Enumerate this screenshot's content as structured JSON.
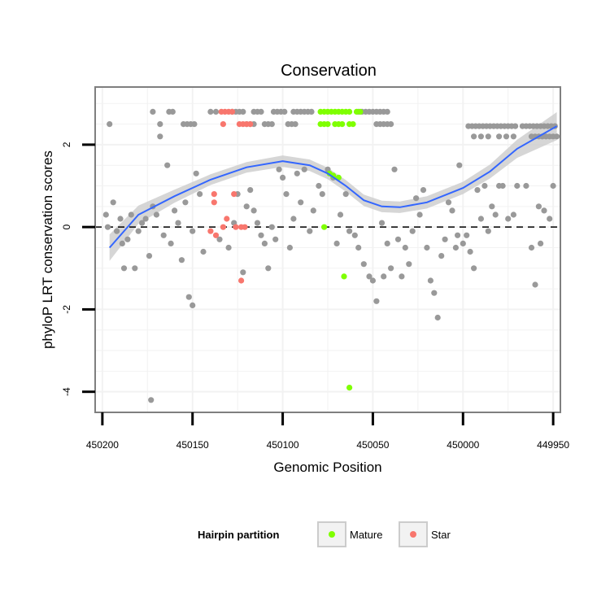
{
  "chart_data": {
    "type": "scatter",
    "title": "Conservation",
    "xlabel": "Genomic Position",
    "ylabel": "phyloP LRT conservation scores",
    "xlim": [
      450204,
      449946
    ],
    "ylim": [
      -4.5,
      3.4
    ],
    "x_reversed": true,
    "x_ticks": [
      450200,
      450150,
      450100,
      450050,
      450000,
      449950
    ],
    "y_ticks": [
      -4,
      -2,
      0,
      2
    ],
    "reference_line": {
      "y": 0,
      "style": "dashed"
    },
    "legend": {
      "title": "Hairpin partition",
      "position": "bottom",
      "entries": [
        {
          "label": "Mature",
          "color": "#7fff00"
        },
        {
          "label": "Star",
          "color": "#f8766d"
        }
      ]
    },
    "colors": {
      "other": "#999999",
      "mature": "#7fff00",
      "star": "#f8766d",
      "smooth": "#3366ff",
      "band": "#cccccc"
    },
    "smooth_fit": {
      "method": "loess",
      "x": [
        450196,
        450180,
        450160,
        450140,
        450120,
        450100,
        450085,
        450075,
        450065,
        450055,
        450045,
        450035,
        450020,
        450000,
        449985,
        449970,
        449948
      ],
      "y": [
        -0.5,
        0.3,
        0.75,
        1.15,
        1.45,
        1.6,
        1.5,
        1.3,
        1.0,
        0.65,
        0.5,
        0.48,
        0.6,
        0.95,
        1.35,
        1.9,
        2.45
      ],
      "se": [
        0.32,
        0.22,
        0.16,
        0.13,
        0.13,
        0.14,
        0.14,
        0.14,
        0.14,
        0.14,
        0.14,
        0.14,
        0.15,
        0.15,
        0.17,
        0.22,
        0.34
      ]
    },
    "series": [
      {
        "name": "Other",
        "points": [
          [
            450196,
            2.5
          ],
          [
            450194,
            0.6
          ],
          [
            450190,
            0.2
          ],
          [
            450189,
            -0.4
          ],
          [
            450188,
            -1.0
          ],
          [
            450186,
            -0.3
          ],
          [
            450184,
            0.3
          ],
          [
            450182,
            -1.0
          ],
          [
            450180,
            -0.1
          ],
          [
            450178,
            0.1
          ],
          [
            450176,
            0.2
          ],
          [
            450174,
            -0.7
          ],
          [
            450172,
            0.5
          ],
          [
            450170,
            0.3
          ],
          [
            450168,
            2.2
          ],
          [
            450166,
            -0.2
          ],
          [
            450164,
            1.5
          ],
          [
            450162,
            -0.4
          ],
          [
            450160,
            0.4
          ],
          [
            450158,
            0.1
          ],
          [
            450156,
            -0.8
          ],
          [
            450154,
            0.6
          ],
          [
            450152,
            -1.7
          ],
          [
            450150,
            -1.9
          ],
          [
            450148,
            1.3
          ],
          [
            450146,
            0.8
          ],
          [
            450144,
            -0.6
          ],
          [
            450135,
            -0.3
          ],
          [
            450130,
            -0.5
          ],
          [
            450125,
            0.8
          ],
          [
            450122,
            -1.1
          ],
          [
            450120,
            0.5
          ],
          [
            450118,
            0.9
          ],
          [
            450116,
            0.4
          ],
          [
            450114,
            0.1
          ],
          [
            450112,
            -0.2
          ],
          [
            450110,
            -0.4
          ],
          [
            450108,
            -1.0
          ],
          [
            450106,
            0.0
          ],
          [
            450104,
            -0.3
          ],
          [
            450102,
            1.4
          ],
          [
            450100,
            1.2
          ],
          [
            450098,
            0.8
          ],
          [
            450096,
            -0.5
          ],
          [
            450094,
            0.2
          ],
          [
            450092,
            1.3
          ],
          [
            450090,
            0.6
          ],
          [
            450088,
            1.4
          ],
          [
            450085,
            -0.1
          ],
          [
            450080,
            1.0
          ],
          [
            450078,
            0.8
          ],
          [
            450075,
            1.4
          ],
          [
            450072,
            1.2
          ],
          [
            450068,
            0.3
          ],
          [
            450065,
            0.8
          ],
          [
            450060,
            -0.2
          ],
          [
            450058,
            -0.5
          ],
          [
            450055,
            -0.9
          ],
          [
            450052,
            -1.2
          ],
          [
            450050,
            -1.3
          ],
          [
            450048,
            -1.8
          ],
          [
            450045,
            0.1
          ],
          [
            450042,
            -0.4
          ],
          [
            450040,
            -1.0
          ],
          [
            450038,
            1.4
          ],
          [
            450036,
            -0.3
          ],
          [
            450034,
            -1.2
          ],
          [
            450032,
            -0.5
          ],
          [
            450030,
            -0.9
          ],
          [
            450028,
            -0.1
          ],
          [
            450026,
            0.7
          ],
          [
            450024,
            0.3
          ],
          [
            450022,
            0.9
          ],
          [
            450020,
            -0.5
          ],
          [
            450018,
            -1.3
          ],
          [
            450016,
            -1.6
          ],
          [
            450014,
            -2.2
          ],
          [
            450012,
            -0.7
          ],
          [
            450010,
            -0.3
          ],
          [
            450008,
            0.6
          ],
          [
            450006,
            0.4
          ],
          [
            450004,
            -0.5
          ],
          [
            450002,
            1.5
          ],
          [
            450000,
            -0.4
          ],
          [
            449998,
            -0.2
          ],
          [
            449996,
            -0.6
          ],
          [
            449994,
            -1.0
          ],
          [
            449992,
            0.9
          ],
          [
            449990,
            0.2
          ],
          [
            449988,
            1.0
          ],
          [
            449986,
            -0.1
          ],
          [
            449984,
            0.5
          ],
          [
            449982,
            0.3
          ],
          [
            449980,
            1.0
          ],
          [
            449978,
            1.0
          ],
          [
            449975,
            0.2
          ],
          [
            449972,
            0.3
          ],
          [
            449970,
            1.0
          ],
          [
            449962,
            -0.5
          ],
          [
            449960,
            -1.4
          ],
          [
            449957,
            -0.4
          ],
          [
            449955,
            0.4
          ],
          [
            449952,
            0.2
          ],
          [
            449950,
            1.0
          ],
          [
            450198,
            0.3
          ],
          [
            450197,
            0.0
          ],
          [
            450192,
            -0.1
          ],
          [
            450173,
            -4.2
          ],
          [
            450150,
            -0.1
          ],
          [
            450127,
            0.1
          ],
          [
            450083,
            0.4
          ],
          [
            450070,
            -0.4
          ],
          [
            450063,
            -0.1
          ],
          [
            450044,
            -1.2
          ],
          [
            450003,
            -0.2
          ],
          [
            449965,
            1.0
          ],
          [
            449958,
            0.5
          ],
          [
            450172,
            2.8
          ],
          [
            450163,
            2.8
          ],
          [
            450161,
            2.8
          ],
          [
            450140,
            2.8
          ],
          [
            450137,
            2.8
          ],
          [
            450128,
            2.8
          ],
          [
            450126,
            2.8
          ],
          [
            450124,
            2.8
          ],
          [
            450122,
            2.8
          ],
          [
            450116,
            2.8
          ],
          [
            450114,
            2.8
          ],
          [
            450112,
            2.8
          ],
          [
            450105,
            2.8
          ],
          [
            450103,
            2.8
          ],
          [
            450101,
            2.8
          ],
          [
            450099,
            2.8
          ],
          [
            450094,
            2.8
          ],
          [
            450092,
            2.8
          ],
          [
            450090,
            2.8
          ],
          [
            450088,
            2.8
          ],
          [
            450086,
            2.8
          ],
          [
            450084,
            2.8
          ],
          [
            450058,
            2.8
          ],
          [
            450056,
            2.8
          ],
          [
            450054,
            2.8
          ],
          [
            450052,
            2.8
          ],
          [
            450050,
            2.8
          ],
          [
            450048,
            2.8
          ],
          [
            450046,
            2.8
          ],
          [
            450044,
            2.8
          ],
          [
            450042,
            2.8
          ],
          [
            450168,
            2.5
          ],
          [
            450155,
            2.5
          ],
          [
            450153,
            2.5
          ],
          [
            450151,
            2.5
          ],
          [
            450149,
            2.5
          ],
          [
            450120,
            2.5
          ],
          [
            450118,
            2.5
          ],
          [
            450116,
            2.5
          ],
          [
            450110,
            2.5
          ],
          [
            450108,
            2.5
          ],
          [
            450106,
            2.5
          ],
          [
            450097,
            2.5
          ],
          [
            450095,
            2.5
          ],
          [
            450093,
            2.5
          ],
          [
            450048,
            2.5
          ],
          [
            450046,
            2.5
          ],
          [
            450044,
            2.5
          ],
          [
            450042,
            2.5
          ],
          [
            450040,
            2.5
          ],
          [
            449997,
            2.45
          ],
          [
            449995,
            2.45
          ],
          [
            449993,
            2.45
          ],
          [
            449991,
            2.45
          ],
          [
            449989,
            2.45
          ],
          [
            449987,
            2.45
          ],
          [
            449985,
            2.45
          ],
          [
            449983,
            2.45
          ],
          [
            449981,
            2.45
          ],
          [
            449979,
            2.45
          ],
          [
            449977,
            2.45
          ],
          [
            449975,
            2.45
          ],
          [
            449973,
            2.45
          ],
          [
            449971,
            2.45
          ],
          [
            449967,
            2.45
          ],
          [
            449965,
            2.45
          ],
          [
            449963,
            2.45
          ],
          [
            449961,
            2.45
          ],
          [
            449959,
            2.45
          ],
          [
            449957,
            2.45
          ],
          [
            449955,
            2.45
          ],
          [
            449953,
            2.45
          ],
          [
            449951,
            2.45
          ],
          [
            449949,
            2.45
          ],
          [
            449994,
            2.2
          ],
          [
            449990,
            2.2
          ],
          [
            449986,
            2.2
          ],
          [
            449980,
            2.2
          ],
          [
            449976,
            2.2
          ],
          [
            449972,
            2.2
          ],
          [
            449962,
            2.2
          ],
          [
            449960,
            2.2
          ],
          [
            449958,
            2.2
          ],
          [
            449956,
            2.2
          ],
          [
            449954,
            2.2
          ],
          [
            449952,
            2.2
          ],
          [
            449950,
            2.2
          ],
          [
            449948,
            2.2
          ]
        ]
      },
      {
        "name": "Mature",
        "points": [
          [
            450079,
            2.8
          ],
          [
            450077,
            2.8
          ],
          [
            450075,
            2.8
          ],
          [
            450073,
            2.8
          ],
          [
            450071,
            2.8
          ],
          [
            450069,
            2.8
          ],
          [
            450067,
            2.8
          ],
          [
            450065,
            2.8
          ],
          [
            450063,
            2.8
          ],
          [
            450059,
            2.8
          ],
          [
            450057,
            2.8
          ],
          [
            450079,
            2.5
          ],
          [
            450077,
            2.5
          ],
          [
            450075,
            2.5
          ],
          [
            450071,
            2.5
          ],
          [
            450069,
            2.5
          ],
          [
            450067,
            2.5
          ],
          [
            450063,
            2.5
          ],
          [
            450061,
            2.5
          ],
          [
            450074,
            1.3
          ],
          [
            450072,
            1.25
          ],
          [
            450069,
            1.2
          ],
          [
            450077,
            0.0
          ],
          [
            450066,
            -1.2
          ],
          [
            450063,
            -3.9
          ]
        ]
      },
      {
        "name": "Star",
        "points": [
          [
            450134,
            2.8
          ],
          [
            450132,
            2.8
          ],
          [
            450130,
            2.8
          ],
          [
            450128,
            2.8
          ],
          [
            450133,
            2.5
          ],
          [
            450124,
            2.5
          ],
          [
            450122,
            2.5
          ],
          [
            450120,
            2.5
          ],
          [
            450118,
            2.5
          ],
          [
            450138,
            0.8
          ],
          [
            450138,
            0.6
          ],
          [
            450131,
            0.2
          ],
          [
            450133,
            0.0
          ],
          [
            450127,
            0.8
          ],
          [
            450140,
            -0.1
          ],
          [
            450137,
            -0.2
          ],
          [
            450126,
            0.0
          ],
          [
            450123,
            0.0
          ],
          [
            450121,
            0.0
          ],
          [
            450123,
            -1.3
          ]
        ]
      }
    ]
  }
}
